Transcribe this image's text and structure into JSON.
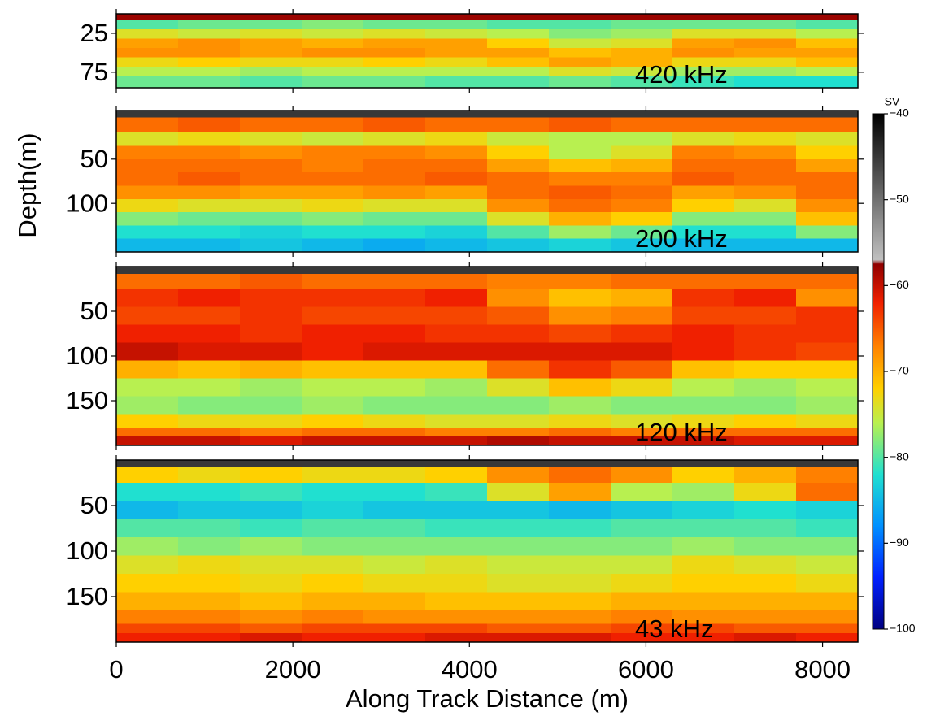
{
  "chart_data": {
    "type": "heatmap",
    "xlabel": "Along Track Distance (m)",
    "ylabel": "Depth(m)",
    "xlim": [
      0,
      8400
    ],
    "xticks": [
      0,
      2000,
      4000,
      6000,
      8000
    ],
    "x_bins": [
      0,
      700,
      1400,
      2100,
      2800,
      3500,
      4200,
      4900,
      5600,
      6300,
      7000,
      7700,
      8400
    ],
    "colorbar": {
      "label": "SV",
      "lim": [
        -100,
        -40
      ],
      "ticks": [
        {
          "value": -40,
          "label": "−40"
        },
        {
          "value": -50,
          "label": "−50"
        },
        {
          "value": -60,
          "label": "−60"
        },
        {
          "value": -70,
          "label": "−70"
        },
        {
          "value": -80,
          "label": "−80"
        },
        {
          "value": -90,
          "label": "−90"
        },
        {
          "value": -100,
          "label": "−100"
        }
      ],
      "colorscale": [
        {
          "value": -100,
          "color": "#000080"
        },
        {
          "value": -94,
          "color": "#0020ff"
        },
        {
          "value": -88,
          "color": "#0090ff"
        },
        {
          "value": -82,
          "color": "#20e0d0"
        },
        {
          "value": -76,
          "color": "#b8f050"
        },
        {
          "value": -72,
          "color": "#ffd000"
        },
        {
          "value": -67,
          "color": "#ff8000"
        },
        {
          "value": -62,
          "color": "#f02000"
        },
        {
          "value": -57.5,
          "color": "#900000"
        },
        {
          "value": -57,
          "color": "#c0c0c0"
        },
        {
          "value": -40,
          "color": "#000000"
        }
      ]
    },
    "panels": [
      {
        "label": "420 kHz",
        "ylim": [
          0,
          95
        ],
        "yticks": [
          25,
          75
        ],
        "depth_bins": [
          0,
          8,
          20,
          32,
          44,
          56,
          68,
          80,
          95
        ],
        "sv": [
          [
            -58,
            -58,
            -58,
            -58,
            -58,
            -58,
            -58,
            -58,
            -58,
            -58,
            -58,
            -58
          ],
          [
            -80,
            -79,
            -79,
            -78,
            -79,
            -79,
            -80,
            -80,
            -79,
            -79,
            -79,
            -80
          ],
          [
            -74,
            -75,
            -74,
            -75,
            -74,
            -75,
            -76,
            -78,
            -77,
            -74,
            -74,
            -76
          ],
          [
            -69,
            -68,
            -69,
            -70,
            -69,
            -69,
            -72,
            -75,
            -74,
            -69,
            -68,
            -71
          ],
          [
            -68,
            -68,
            -69,
            -68,
            -68,
            -69,
            -69,
            -71,
            -70,
            -68,
            -69,
            -69
          ],
          [
            -73,
            -72,
            -73,
            -73,
            -72,
            -73,
            -71,
            -69,
            -70,
            -73,
            -73,
            -71
          ],
          [
            -76,
            -76,
            -77,
            -76,
            -76,
            -76,
            -76,
            -74,
            -75,
            -77,
            -77,
            -76
          ],
          [
            -79,
            -79,
            -80,
            -79,
            -79,
            -80,
            -80,
            -79,
            -80,
            -81,
            -82,
            -82
          ]
        ]
      },
      {
        "label": "200 kHz",
        "ylim": [
          -5,
          155
        ],
        "yticks": [
          50,
          100
        ],
        "depth_bins": [
          -5,
          3,
          20,
          35,
          50,
          65,
          80,
          95,
          110,
          125,
          140,
          155
        ],
        "sv": [
          [
            -45,
            -45,
            -45,
            -45,
            -45,
            -45,
            -45,
            -45,
            -45,
            -45,
            -45,
            -45
          ],
          [
            -66,
            -65,
            -66,
            -66,
            -65,
            -66,
            -66,
            -65,
            -66,
            -66,
            -66,
            -66
          ],
          [
            -74,
            -73,
            -74,
            -75,
            -74,
            -73,
            -75,
            -76,
            -76,
            -74,
            -73,
            -74
          ],
          [
            -67,
            -67,
            -68,
            -67,
            -67,
            -68,
            -72,
            -76,
            -74,
            -67,
            -68,
            -72
          ],
          [
            -66,
            -66,
            -66,
            -67,
            -66,
            -66,
            -69,
            -71,
            -70,
            -66,
            -66,
            -69
          ],
          [
            -66,
            -65,
            -66,
            -66,
            -66,
            -65,
            -66,
            -67,
            -67,
            -65,
            -66,
            -66
          ],
          [
            -68,
            -68,
            -69,
            -69,
            -68,
            -69,
            -66,
            -65,
            -66,
            -69,
            -68,
            -66
          ],
          [
            -73,
            -74,
            -74,
            -73,
            -74,
            -74,
            -68,
            -66,
            -67,
            -72,
            -74,
            -68
          ],
          [
            -78,
            -79,
            -79,
            -78,
            -79,
            -79,
            -74,
            -70,
            -72,
            -78,
            -78,
            -71
          ],
          [
            -82,
            -82,
            -83,
            -82,
            -82,
            -83,
            -80,
            -77,
            -79,
            -82,
            -82,
            -78
          ],
          [
            -85,
            -85,
            -84,
            -85,
            -86,
            -85,
            -84,
            -83,
            -84,
            -85,
            -85,
            -85
          ]
        ]
      },
      {
        "label": "120 kHz",
        "ylim": [
          0,
          200
        ],
        "yticks": [
          50,
          100,
          150
        ],
        "depth_bins": [
          0,
          8,
          25,
          45,
          65,
          85,
          105,
          125,
          145,
          165,
          180,
          190,
          200
        ],
        "sv": [
          [
            -45,
            -45,
            -45,
            -45,
            -45,
            -45,
            -45,
            -45,
            -45,
            -45,
            -45,
            -45
          ],
          [
            -66,
            -66,
            -65,
            -66,
            -66,
            -66,
            -67,
            -67,
            -66,
            -66,
            -66,
            -66
          ],
          [
            -63,
            -62,
            -63,
            -63,
            -63,
            -62,
            -68,
            -71,
            -70,
            -63,
            -62,
            -68
          ],
          [
            -64,
            -64,
            -63,
            -64,
            -64,
            -64,
            -65,
            -68,
            -67,
            -64,
            -64,
            -63
          ],
          [
            -62,
            -62,
            -63,
            -62,
            -62,
            -63,
            -63,
            -64,
            -63,
            -62,
            -63,
            -63
          ],
          [
            -60,
            -61,
            -61,
            -62,
            -61,
            -61,
            -61,
            -61,
            -61,
            -62,
            -63,
            -64
          ],
          [
            -70,
            -71,
            -70,
            -71,
            -71,
            -71,
            -66,
            -63,
            -65,
            -71,
            -72,
            -72
          ],
          [
            -76,
            -76,
            -77,
            -76,
            -76,
            -77,
            -74,
            -71,
            -73,
            -76,
            -77,
            -76
          ],
          [
            -77,
            -78,
            -78,
            -77,
            -78,
            -78,
            -78,
            -77,
            -78,
            -78,
            -78,
            -77
          ],
          [
            -72,
            -73,
            -73,
            -72,
            -73,
            -74,
            -74,
            -73,
            -74,
            -73,
            -72,
            -73
          ],
          [
            -66,
            -66,
            -67,
            -66,
            -66,
            -67,
            -67,
            -66,
            -67,
            -66,
            -66,
            -66
          ],
          [
            -60,
            -60,
            -61,
            -60,
            -60,
            -60,
            -59,
            -60,
            -60,
            -60,
            -61,
            -61
          ]
        ]
      },
      {
        "label": "43 kHz",
        "ylim": [
          0,
          200
        ],
        "yticks": [
          50,
          100,
          150
        ],
        "depth_bins": [
          0,
          8,
          25,
          45,
          65,
          85,
          105,
          125,
          145,
          165,
          180,
          190,
          200
        ],
        "sv": [
          [
            -45,
            -45,
            -45,
            -45,
            -45,
            -45,
            -45,
            -45,
            -45,
            -45,
            -45,
            -45
          ],
          [
            -72,
            -73,
            -72,
            -73,
            -73,
            -72,
            -68,
            -66,
            -68,
            -72,
            -70,
            -67
          ],
          [
            -82,
            -82,
            -81,
            -82,
            -82,
            -81,
            -74,
            -69,
            -76,
            -77,
            -73,
            -66
          ],
          [
            -85,
            -84,
            -84,
            -83,
            -84,
            -84,
            -84,
            -85,
            -84,
            -83,
            -82,
            -83
          ],
          [
            -80,
            -80,
            -81,
            -80,
            -80,
            -81,
            -81,
            -81,
            -80,
            -80,
            -80,
            -81
          ],
          [
            -77,
            -78,
            -77,
            -78,
            -78,
            -78,
            -78,
            -78,
            -78,
            -77,
            -78,
            -78
          ],
          [
            -74,
            -73,
            -74,
            -74,
            -75,
            -74,
            -75,
            -75,
            -75,
            -73,
            -74,
            -75
          ],
          [
            -72,
            -72,
            -73,
            -72,
            -73,
            -73,
            -74,
            -74,
            -73,
            -72,
            -72,
            -73
          ],
          [
            -70,
            -70,
            -71,
            -70,
            -70,
            -71,
            -71,
            -71,
            -70,
            -70,
            -70,
            -70
          ],
          [
            -67,
            -67,
            -68,
            -67,
            -68,
            -68,
            -68,
            -68,
            -67,
            -68,
            -68,
            -68
          ],
          [
            -64,
            -64,
            -65,
            -64,
            -64,
            -64,
            -65,
            -65,
            -64,
            -64,
            -65,
            -65
          ],
          [
            -62,
            -62,
            -61,
            -62,
            -62,
            -61,
            -61,
            -61,
            -62,
            -62,
            -61,
            -62
          ]
        ]
      }
    ]
  }
}
